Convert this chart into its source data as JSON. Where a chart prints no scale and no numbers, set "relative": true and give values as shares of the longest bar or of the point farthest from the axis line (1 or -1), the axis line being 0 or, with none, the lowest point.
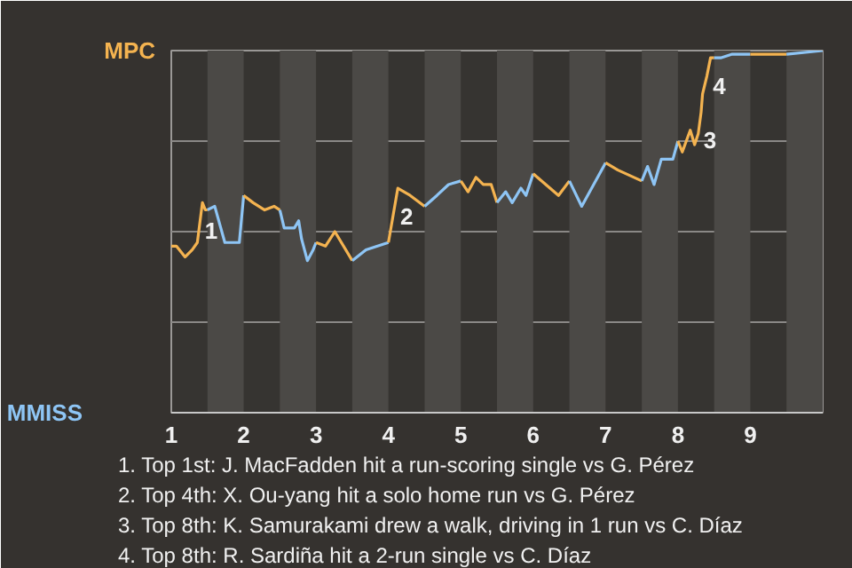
{
  "chart_data": {
    "type": "line",
    "relative": true,
    "grid": "y",
    "xlim": [
      1,
      10
    ],
    "xticks": [
      1,
      2,
      3,
      4,
      5,
      6,
      7,
      8,
      9
    ],
    "series": [
      {
        "name": "MPC",
        "color": "#f4b350",
        "x": [
          1,
          1.07,
          1.19,
          1.29,
          1.36,
          1.43,
          1.47,
          1.5
        ],
        "values": [
          0.46,
          0.46,
          0.43,
          0.45,
          0.47,
          0.58,
          0.56,
          0.56
        ]
      },
      {
        "name": "MMISS",
        "color": "#8ec5f5",
        "x": [
          1.5,
          1.6,
          1.74,
          1.94,
          2
        ],
        "values": [
          0.56,
          0.57,
          0.47,
          0.47,
          0.6
        ]
      },
      {
        "color": "#f4b350",
        "x": [
          2,
          2.13,
          2.29,
          2.42,
          2.5
        ],
        "values": [
          0.6,
          0.58,
          0.56,
          0.57,
          0.56
        ]
      },
      {
        "color": "#8ec5f5",
        "x": [
          2.5,
          2.56,
          2.7,
          2.76,
          2.8,
          2.88,
          2.96,
          3
        ],
        "values": [
          0.56,
          0.51,
          0.51,
          0.53,
          0.48,
          0.42,
          0.45,
          0.47
        ]
      },
      {
        "color": "#f4b350",
        "x": [
          3,
          3.13,
          3.26,
          3.5
        ],
        "values": [
          0.47,
          0.46,
          0.5,
          0.42
        ]
      },
      {
        "color": "#8ec5f5",
        "x": [
          3.5,
          3.69,
          4
        ],
        "values": [
          0.42,
          0.45,
          0.47
        ]
      },
      {
        "color": "#f4b350",
        "x": [
          4,
          4.13,
          4.3,
          4.5
        ],
        "values": [
          0.47,
          0.62,
          0.6,
          0.57
        ]
      },
      {
        "color": "#8ec5f5",
        "x": [
          4.5,
          4.67,
          4.83,
          5
        ],
        "values": [
          0.57,
          0.6,
          0.63,
          0.64
        ]
      },
      {
        "color": "#f4b350",
        "x": [
          5,
          5.1,
          5.21,
          5.31,
          5.42,
          5.5
        ],
        "values": [
          0.64,
          0.61,
          0.65,
          0.63,
          0.63,
          0.58
        ]
      },
      {
        "color": "#8ec5f5",
        "x": [
          5.5,
          5.62,
          5.71,
          5.83,
          5.9,
          6
        ],
        "values": [
          0.58,
          0.61,
          0.58,
          0.62,
          0.6,
          0.66
        ]
      },
      {
        "color": "#f4b350",
        "x": [
          6,
          6.35,
          6.5
        ],
        "values": [
          0.66,
          0.6,
          0.64
        ]
      },
      {
        "color": "#8ec5f5",
        "x": [
          6.5,
          6.67,
          7
        ],
        "values": [
          0.64,
          0.57,
          0.69
        ]
      },
      {
        "color": "#f4b350",
        "x": [
          7,
          7.17,
          7.5
        ],
        "values": [
          0.69,
          0.67,
          0.64
        ]
      },
      {
        "color": "#8ec5f5",
        "x": [
          7.5,
          7.58,
          7.67,
          7.77,
          7.93,
          8
        ],
        "values": [
          0.64,
          0.68,
          0.63,
          0.7,
          0.7,
          0.75
        ]
      },
      {
        "color": "#f4b350",
        "x": [
          8,
          8.06,
          8.17,
          8.23,
          8.28,
          8.32,
          8.34,
          8.4,
          8.45,
          8.5
        ],
        "values": [
          0.75,
          0.72,
          0.78,
          0.74,
          0.77,
          0.83,
          0.88,
          0.93,
          0.98,
          0.98
        ]
      },
      {
        "color": "#8ec5f5",
        "x": [
          8.5,
          8.59,
          8.75,
          9
        ],
        "values": [
          0.98,
          0.98,
          0.99,
          0.99
        ]
      },
      {
        "color": "#f4b350",
        "x": [
          9,
          9.5
        ],
        "values": [
          0.99,
          0.99
        ]
      },
      {
        "color": "#8ec5f5",
        "x": [
          9.5,
          10
        ],
        "values": [
          0.99,
          1.0
        ]
      }
    ],
    "bands": [
      {
        "axis": "x",
        "from": 1.5,
        "to": 2,
        "color": "#4b4946"
      },
      {
        "axis": "x",
        "from": 2.5,
        "to": 3,
        "color": "#4b4946"
      },
      {
        "axis": "x",
        "from": 3.5,
        "to": 4,
        "color": "#4b4946"
      },
      {
        "axis": "x",
        "from": 4.5,
        "to": 5,
        "color": "#4b4946"
      },
      {
        "axis": "x",
        "from": 5.5,
        "to": 6,
        "color": "#4b4946"
      },
      {
        "axis": "x",
        "from": 6.5,
        "to": 7,
        "color": "#4b4946"
      },
      {
        "axis": "x",
        "from": 7.5,
        "to": 8,
        "color": "#4b4946"
      },
      {
        "axis": "x",
        "from": 8.5,
        "to": 9,
        "color": "#4b4946"
      },
      {
        "axis": "x",
        "from": 9.5,
        "to": 10,
        "color": "#4b4946"
      }
    ],
    "annotations": [
      {
        "text": "1",
        "x": 1.43,
        "y": 0.58
      },
      {
        "text": "2",
        "x": 4.13,
        "y": 0.62
      },
      {
        "text": "3",
        "x": 8.32,
        "y": 0.83
      },
      {
        "text": "4",
        "x": 8.45,
        "y": 0.98
      },
      "1. Top 1st: J. MacFadden hit a run-scoring single vs G. Pérez",
      "2. Top 4th: X. Ou-yang hit a solo home run vs G. Pérez",
      "3. Top 8th: K. Samurakami drew a walk, driving in 1 run vs C. Díaz",
      "4. Top 8th: R. Sardiña hit a 2-run single vs C. Díaz"
    ]
  }
}
